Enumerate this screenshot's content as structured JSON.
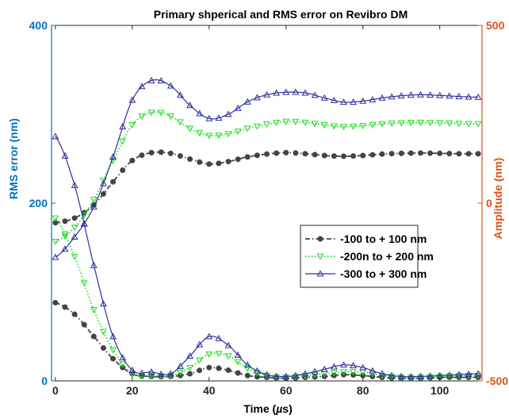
{
  "chart_data": {
    "type": "line",
    "title": "Primary shperical and RMS error on Revibro DM",
    "xlabel": "Time (µs)",
    "ylabel_left": "RMS error (nm)",
    "ylabel_right": "Amplitude (nm)",
    "xlim": [
      -1,
      111
    ],
    "ylim_left": [
      0,
      400
    ],
    "ylim_right": [
      -500,
      500
    ],
    "x_ticks": [
      0,
      20,
      40,
      60,
      80,
      100
    ],
    "y_ticks_left": [
      0,
      200,
      400
    ],
    "y_ticks_right": [
      -500,
      0,
      500
    ],
    "left_axis_color": "#0072BD",
    "right_axis_color": "#D95319",
    "legend_position": "center-right",
    "series": [
      {
        "name": "-100 to + 100 nm",
        "color": "#444444",
        "marker": "circle",
        "line": "dashdot",
        "amplitude": {
          "x": [
            0,
            5,
            10,
            15,
            20,
            25,
            30,
            35,
            40,
            45,
            50,
            55,
            60,
            65,
            70,
            75,
            80,
            85,
            90,
            95,
            100,
            105,
            110
          ],
          "y": [
            -55,
            -42,
            -5,
            60,
            120,
            142,
            140,
            124,
            110,
            117,
            130,
            138,
            142,
            139,
            134,
            132,
            134,
            138,
            140,
            141,
            140,
            139,
            139
          ]
        },
        "rms": {
          "x": [
            0,
            5,
            10,
            15,
            20,
            25,
            30,
            35,
            40,
            45,
            50,
            55,
            60,
            65,
            70,
            75,
            80,
            85,
            90,
            95,
            100,
            105,
            110
          ],
          "y": [
            88,
            75,
            50,
            25,
            8,
            5,
            5,
            8,
            15,
            12,
            6,
            4,
            3,
            4,
            5,
            7,
            6,
            4,
            3,
            3,
            4,
            4,
            4
          ]
        }
      },
      {
        "name": "-200n to + 200 nm",
        "color": "#22DD22",
        "marker": "triangle-down",
        "line": "dotted",
        "amplitude": {
          "x": [
            0,
            5,
            10,
            15,
            20,
            25,
            30,
            35,
            40,
            45,
            50,
            55,
            60,
            65,
            70,
            75,
            80,
            85,
            90,
            95,
            100,
            105,
            110
          ],
          "y": [
            -108,
            -68,
            10,
            120,
            220,
            255,
            245,
            210,
            190,
            195,
            210,
            222,
            230,
            227,
            220,
            215,
            218,
            223,
            226,
            227,
            226,
            224,
            223
          ]
        },
        "rms": {
          "x": [
            0,
            5,
            10,
            15,
            20,
            25,
            30,
            35,
            40,
            45,
            50,
            55,
            60,
            65,
            70,
            75,
            80,
            85,
            90,
            95,
            100,
            105,
            110
          ],
          "y": [
            183,
            140,
            80,
            35,
            8,
            6,
            6,
            15,
            30,
            28,
            14,
            6,
            4,
            6,
            8,
            10,
            10,
            6,
            4,
            4,
            5,
            6,
            6
          ]
        }
      },
      {
        "name": "-300 to + 300 nm",
        "color": "#2E2E9E",
        "marker": "triangle-up",
        "line": "solid",
        "amplitude": {
          "x": [
            0,
            5,
            10,
            15,
            20,
            25,
            30,
            35,
            40,
            45,
            50,
            55,
            60,
            65,
            70,
            75,
            80,
            85,
            90,
            95,
            100,
            105,
            110
          ],
          "y": [
            -152,
            -95,
            -10,
            130,
            290,
            345,
            330,
            275,
            238,
            250,
            285,
            305,
            312,
            310,
            296,
            284,
            287,
            296,
            302,
            305,
            303,
            300,
            298
          ]
        },
        "rms": {
          "x": [
            0,
            5,
            10,
            15,
            20,
            25,
            30,
            35,
            40,
            45,
            50,
            55,
            60,
            65,
            70,
            75,
            80,
            85,
            90,
            95,
            100,
            105,
            110
          ],
          "y": [
            275,
            220,
            130,
            50,
            12,
            10,
            8,
            28,
            50,
            40,
            18,
            7,
            5,
            8,
            13,
            18,
            15,
            8,
            5,
            5,
            6,
            7,
            8
          ]
        }
      }
    ]
  }
}
